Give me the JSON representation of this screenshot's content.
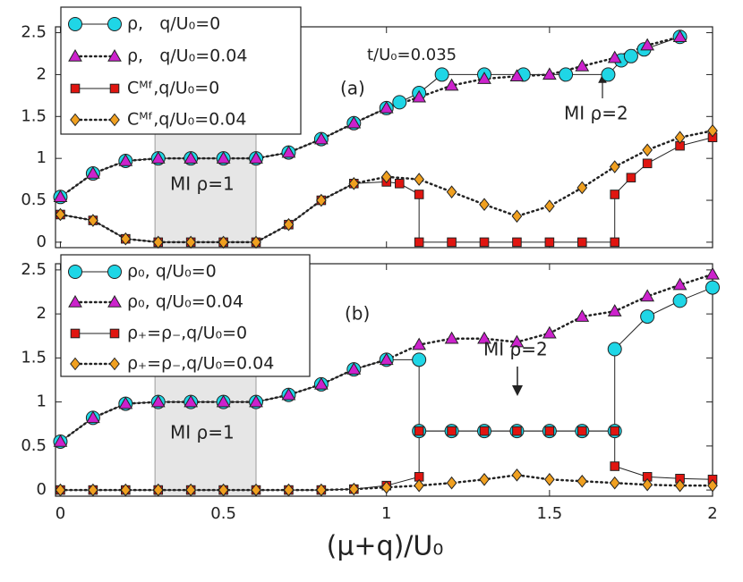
{
  "chart_data": [
    {
      "type": "line",
      "panel_label": "(a)",
      "annotations": [
        "t/U₀=0.035",
        "MI ρ=2",
        "MI ρ=1"
      ],
      "xlim": [
        -0.015,
        2
      ],
      "xticks": [
        0,
        0.5,
        1,
        1.5,
        2
      ],
      "ylim": [
        -0.065,
        2.57
      ],
      "yticks": [
        0,
        0.5,
        1,
        1.5,
        2,
        2.5
      ],
      "shaded_region": [
        0.29,
        0.6
      ],
      "legend": "upper left",
      "series": [
        {
          "name": "ρ,   q/U₀=0",
          "color": "#1fd6e6",
          "marker": "circle",
          "line": "solid",
          "x": [
            0,
            0.1,
            0.2,
            0.3,
            0.4,
            0.5,
            0.6,
            0.7,
            0.8,
            0.9,
            1.0,
            1.04,
            1.1,
            1.17,
            1.3,
            1.42,
            1.55,
            1.68,
            1.72,
            1.75,
            1.79,
            1.9
          ],
          "values": [
            0.54,
            0.82,
            0.97,
            1,
            1,
            1,
            1,
            1.07,
            1.23,
            1.42,
            1.6,
            1.67,
            1.78,
            2,
            2,
            2,
            2,
            2,
            2.17,
            2.22,
            2.3,
            2.45
          ]
        },
        {
          "name": "ρ,   q/U₀=0.04",
          "color": "#cc22cc",
          "marker": "triangle",
          "line": "dotted",
          "x": [
            0,
            0.1,
            0.2,
            0.3,
            0.4,
            0.5,
            0.6,
            0.7,
            0.8,
            0.9,
            1.0,
            1.1,
            1.2,
            1.3,
            1.4,
            1.5,
            1.6,
            1.7,
            1.8,
            1.9
          ],
          "values": [
            0.54,
            0.82,
            0.97,
            1,
            1,
            1,
            1,
            1.07,
            1.23,
            1.42,
            1.6,
            1.73,
            1.87,
            1.95,
            1.98,
            2,
            2.1,
            2.2,
            2.35,
            2.45
          ]
        },
        {
          "name": "Cᴹᶠ,q/U₀=0",
          "color": "#e01510",
          "marker": "square",
          "line": "solid",
          "x": [
            0,
            0.1,
            0.2,
            0.3,
            0.4,
            0.5,
            0.6,
            0.7,
            0.8,
            0.9,
            1.0,
            1.04,
            1.1,
            1.1,
            1.2,
            1.3,
            1.4,
            1.5,
            1.6,
            1.7,
            1.7,
            1.75,
            1.8,
            1.9,
            2.0
          ],
          "values": [
            0.33,
            0.26,
            0.04,
            0,
            0,
            0,
            0,
            0.21,
            0.5,
            0.7,
            0.72,
            0.7,
            0.57,
            0,
            0,
            0,
            0,
            0,
            0,
            0,
            0.57,
            0.77,
            0.94,
            1.15,
            1.25
          ]
        },
        {
          "name": "Cᴹᶠ,q/U₀=0.04",
          "color": "#f0a020",
          "marker": "diamond",
          "line": "dotted",
          "x": [
            0,
            0.1,
            0.2,
            0.3,
            0.4,
            0.5,
            0.6,
            0.7,
            0.8,
            0.9,
            1.0,
            1.1,
            1.2,
            1.3,
            1.4,
            1.5,
            1.6,
            1.7,
            1.8,
            1.9,
            2.0
          ],
          "values": [
            0.33,
            0.26,
            0.04,
            0,
            0,
            0,
            0,
            0.21,
            0.5,
            0.7,
            0.78,
            0.75,
            0.6,
            0.45,
            0.31,
            0.43,
            0.65,
            0.9,
            1.1,
            1.25,
            1.33
          ]
        }
      ]
    },
    {
      "type": "line",
      "panel_label": "(b)",
      "x_label": "(μ+q)/U₀",
      "annotations": [
        "MI ρ=2",
        "MI ρ=1"
      ],
      "xlim": [
        -0.015,
        2
      ],
      "xticks": [
        0,
        0.5,
        1,
        1.5,
        2
      ],
      "ylim": [
        -0.07,
        2.57
      ],
      "yticks": [
        0,
        0.5,
        1,
        1.5,
        2,
        2.5
      ],
      "shaded_region": [
        0.29,
        0.6
      ],
      "legend": "upper left",
      "series": [
        {
          "name": "ρ₀, q/U₀=0",
          "color": "#1fd6e6",
          "marker": "circle",
          "line": "solid",
          "x": [
            0,
            0.1,
            0.2,
            0.3,
            0.4,
            0.5,
            0.6,
            0.7,
            0.8,
            0.9,
            1.0,
            1.1,
            1.1,
            1.2,
            1.3,
            1.4,
            1.5,
            1.6,
            1.7,
            1.7,
            1.8,
            1.9,
            2.0
          ],
          "values": [
            0.55,
            0.82,
            0.98,
            1,
            1,
            1,
            1,
            1.08,
            1.2,
            1.37,
            1.48,
            1.48,
            0.67,
            0.67,
            0.67,
            0.67,
            0.67,
            0.67,
            0.67,
            1.6,
            1.97,
            2.15,
            2.3
          ]
        },
        {
          "name": "ρ₀, q/U₀=0.04",
          "color": "#cc22cc",
          "marker": "triangle",
          "line": "dotted",
          "x": [
            0,
            0.1,
            0.2,
            0.3,
            0.4,
            0.5,
            0.6,
            0.7,
            0.8,
            0.9,
            1.0,
            1.1,
            1.2,
            1.3,
            1.4,
            1.5,
            1.6,
            1.7,
            1.8,
            1.9,
            2.0
          ],
          "values": [
            0.55,
            0.82,
            0.98,
            1,
            1,
            1,
            1,
            1.08,
            1.2,
            1.37,
            1.48,
            1.65,
            1.72,
            1.72,
            1.68,
            1.78,
            1.97,
            2.03,
            2.2,
            2.33,
            2.45
          ]
        },
        {
          "name": "ρ₊=ρ₋,q/U₀=0",
          "color": "#e01510",
          "marker": "square",
          "line": "solid",
          "x": [
            0,
            0.1,
            0.2,
            0.3,
            0.4,
            0.5,
            0.6,
            0.7,
            0.8,
            0.9,
            1.0,
            1.1,
            1.1,
            1.2,
            1.3,
            1.4,
            1.5,
            1.6,
            1.7,
            1.7,
            1.8,
            1.9,
            2.0
          ],
          "values": [
            0,
            0,
            0,
            0,
            0,
            0,
            0,
            0,
            0,
            0.01,
            0.05,
            0.15,
            0.67,
            0.67,
            0.67,
            0.67,
            0.67,
            0.67,
            0.67,
            0.27,
            0.15,
            0.13,
            0.12
          ]
        },
        {
          "name": "ρ₊=ρ₋,q/U₀=0.04",
          "color": "#f0a020",
          "marker": "diamond",
          "line": "dotted",
          "x": [
            0,
            0.1,
            0.2,
            0.3,
            0.4,
            0.5,
            0.6,
            0.7,
            0.8,
            0.9,
            1.0,
            1.1,
            1.2,
            1.3,
            1.4,
            1.5,
            1.6,
            1.7,
            1.8,
            1.9,
            2.0
          ],
          "values": [
            0,
            0,
            0,
            0,
            0,
            0,
            0,
            0,
            0,
            0.01,
            0.03,
            0.05,
            0.08,
            0.12,
            0.17,
            0.12,
            0.1,
            0.08,
            0.06,
            0.05,
            0.05
          ]
        }
      ]
    }
  ]
}
